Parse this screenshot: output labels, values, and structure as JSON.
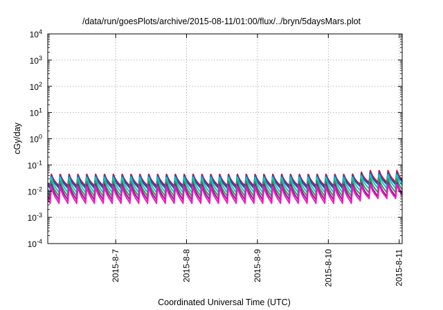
{
  "chart_data": {
    "type": "line",
    "title": "/data/run/goesPlots/archive/2015-08-11/01:00/flux/../bryn/5daysMars.plot",
    "xlabel": "Coordinated Universal Time (UTC)",
    "ylabel": "cGy/day",
    "yscale": "log",
    "ylim": [
      0.0001,
      10000
    ],
    "y_ticks": [
      {
        "base": "10",
        "exp": "-4",
        "value": 0.0001
      },
      {
        "base": "10",
        "exp": "-3",
        "value": 0.001
      },
      {
        "base": "10",
        "exp": "-2",
        "value": 0.01
      },
      {
        "base": "10",
        "exp": "-1",
        "value": 0.1
      },
      {
        "base": "10",
        "exp": "0",
        "value": 1
      },
      {
        "base": "10",
        "exp": "1",
        "value": 10
      },
      {
        "base": "10",
        "exp": "2",
        "value": 100
      },
      {
        "base": "10",
        "exp": "3",
        "value": 1000
      },
      {
        "base": "10",
        "exp": "4",
        "value": 10000
      }
    ],
    "xlim": [
      "2015-08-06 01:00",
      "2015-08-11 01:00"
    ],
    "x_ticks": [
      "2015-8-7",
      "2015-8-8",
      "2015-8-9",
      "2015-8-10",
      "2015-8-11"
    ],
    "x_tick_dates": [
      "2015-08-07",
      "2015-08-08",
      "2015-08-09",
      "2015-08-10",
      "2015-08-11"
    ],
    "grid": true,
    "legend": "none",
    "pattern": {
      "period_hours": 3,
      "peak_hour_offset": 0.8,
      "description_values": "sawtooth; each cycle ramps to a peak then decays"
    },
    "series": [
      {
        "color": "#1f22c8",
        "peak": 0.05,
        "trough": 0.016,
        "peak_late": 0.065,
        "trough_late": 0.02
      },
      {
        "color": "#e0102a",
        "peak": 0.05,
        "trough": 0.015,
        "peak_late": 0.07,
        "trough_late": 0.022
      },
      {
        "color": "#2a4fb0",
        "peak": 0.045,
        "trough": 0.013,
        "peak_late": 0.06,
        "trough_late": 0.018
      },
      {
        "color": "#10c8c8",
        "peak": 0.04,
        "trough": 0.009,
        "peak_late": 0.05,
        "trough_late": 0.013
      },
      {
        "color": "#20a050",
        "peak": 0.028,
        "trough": 0.0065,
        "peak_late": 0.035,
        "trough_late": 0.009
      },
      {
        "color": "#8a1a8a",
        "peak": 0.022,
        "trough": 0.0048,
        "peak_late": 0.025,
        "trough_late": 0.0065
      },
      {
        "color": "#ff10c8",
        "peak": 0.018,
        "trough": 0.0036,
        "peak_late": 0.021,
        "trough_late": 0.0055
      }
    ]
  }
}
